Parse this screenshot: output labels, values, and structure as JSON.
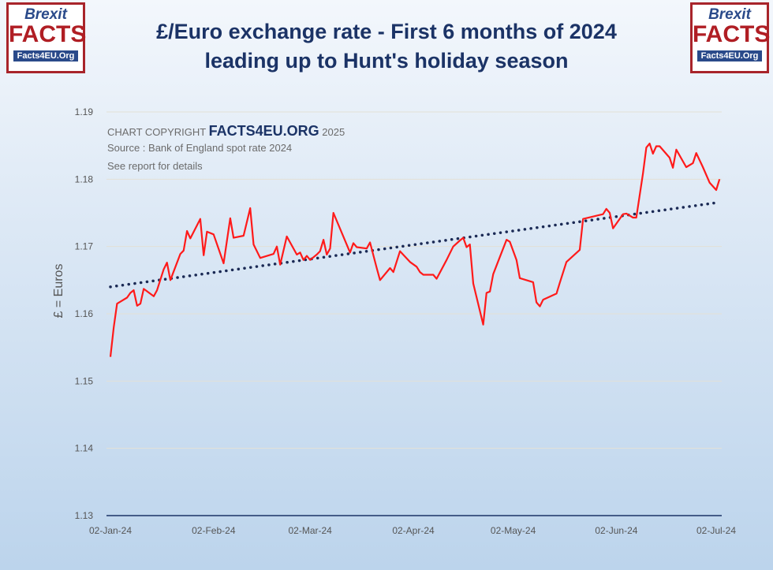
{
  "logo": {
    "line1": "Brexit",
    "line2": "FACTS",
    "line3": "Facts4EU.Org"
  },
  "title_line1": "£/Euro exchange rate - First 6 months of 2024",
  "title_line2": "leading up to Hunt's holiday season",
  "notes": {
    "copyright_prefix": "CHART COPYRIGHT",
    "copyright_brand": "FACTS4EU.ORG",
    "copyright_year": "2025",
    "source": "Source : Bank of England spot rate 2024",
    "details": "See report for details"
  },
  "chart_data": {
    "type": "line",
    "title": "£/Euro exchange rate - First 6 months of 2024 leading up to Hunt's holiday season",
    "ylabel": "£ = Euros",
    "xlabel": "",
    "ylim": [
      1.13,
      1.19
    ],
    "yticks": [
      "1.13",
      "1.14",
      "1.15",
      "1.16",
      "1.17",
      "1.18",
      "1.19"
    ],
    "xticks": [
      [
        "2024-01-02",
        "02-Jan-24"
      ],
      [
        "2024-02-02",
        "02-Feb-24"
      ],
      [
        "2024-03-02",
        "02-Mar-24"
      ],
      [
        "2024-04-02",
        "02-Apr-24"
      ],
      [
        "2024-05-02",
        "02-May-24"
      ],
      [
        "2024-06-02",
        "02-Jun-24"
      ],
      [
        "2024-07-02",
        "02-Jul-24"
      ]
    ],
    "grid": true,
    "colors": {
      "series": "#ff1a1a",
      "trend": "#1b2a55",
      "axis": "#1b3366"
    },
    "series": [
      {
        "points": [
          [
            "2024-01-02",
            1.1536
          ],
          [
            "2024-01-03",
            1.158
          ],
          [
            "2024-01-04",
            1.1615
          ],
          [
            "2024-01-07",
            1.1624
          ],
          [
            "2024-01-08",
            1.1631
          ],
          [
            "2024-01-09",
            1.1635
          ],
          [
            "2024-01-10",
            1.1612
          ],
          [
            "2024-01-11",
            1.1615
          ],
          [
            "2024-01-12",
            1.1637
          ],
          [
            "2024-01-15",
            1.1626
          ],
          [
            "2024-01-16",
            1.1635
          ],
          [
            "2024-01-18",
            1.1666
          ],
          [
            "2024-01-19",
            1.1676
          ],
          [
            "2024-01-20",
            1.165
          ],
          [
            "2024-01-23",
            1.1689
          ],
          [
            "2024-01-24",
            1.1694
          ],
          [
            "2024-01-25",
            1.1723
          ],
          [
            "2024-01-26",
            1.1712
          ],
          [
            "2024-01-29",
            1.1741
          ],
          [
            "2024-01-30",
            1.1687
          ],
          [
            "2024-01-31",
            1.1722
          ],
          [
            "2024-02-02",
            1.1718
          ],
          [
            "2024-02-05",
            1.1675
          ],
          [
            "2024-02-07",
            1.1742
          ],
          [
            "2024-02-08",
            1.1713
          ],
          [
            "2024-02-11",
            1.1716
          ],
          [
            "2024-02-13",
            1.1757
          ],
          [
            "2024-02-14",
            1.1703
          ],
          [
            "2024-02-16",
            1.1683
          ],
          [
            "2024-02-20",
            1.1689
          ],
          [
            "2024-02-21",
            1.17
          ],
          [
            "2024-02-22",
            1.1673
          ],
          [
            "2024-02-24",
            1.1715
          ],
          [
            "2024-02-27",
            1.1688
          ],
          [
            "2024-02-28",
            1.1691
          ],
          [
            "2024-02-29",
            1.168
          ],
          [
            "2024-03-01",
            1.1686
          ],
          [
            "2024-03-02",
            1.168
          ],
          [
            "2024-03-04",
            1.1688
          ],
          [
            "2024-03-05",
            1.1693
          ],
          [
            "2024-03-06",
            1.171
          ],
          [
            "2024-03-07",
            1.1688
          ],
          [
            "2024-03-08",
            1.1697
          ],
          [
            "2024-03-09",
            1.175
          ],
          [
            "2024-03-14",
            1.1691
          ],
          [
            "2024-03-15",
            1.1705
          ],
          [
            "2024-03-16",
            1.1699
          ],
          [
            "2024-03-19",
            1.1697
          ],
          [
            "2024-03-20",
            1.1706
          ],
          [
            "2024-03-22",
            1.1668
          ],
          [
            "2024-03-23",
            1.165
          ],
          [
            "2024-03-26",
            1.1668
          ],
          [
            "2024-03-27",
            1.1662
          ],
          [
            "2024-03-29",
            1.1693
          ],
          [
            "2024-04-01",
            1.1677
          ],
          [
            "2024-04-03",
            1.167
          ],
          [
            "2024-04-04",
            1.1662
          ],
          [
            "2024-04-05",
            1.1658
          ],
          [
            "2024-04-08",
            1.1658
          ],
          [
            "2024-04-09",
            1.1652
          ],
          [
            "2024-04-12",
            1.168
          ],
          [
            "2024-04-14",
            1.17
          ],
          [
            "2024-04-16",
            1.1709
          ],
          [
            "2024-04-17",
            1.1713
          ],
          [
            "2024-04-18",
            1.1699
          ],
          [
            "2024-04-19",
            1.1703
          ],
          [
            "2024-04-20",
            1.1645
          ],
          [
            "2024-04-23",
            1.1584
          ],
          [
            "2024-04-24",
            1.1631
          ],
          [
            "2024-04-25",
            1.1633
          ],
          [
            "2024-04-26",
            1.1659
          ],
          [
            "2024-04-30",
            1.171
          ],
          [
            "2024-05-01",
            1.1707
          ],
          [
            "2024-05-03",
            1.168
          ],
          [
            "2024-05-04",
            1.1653
          ],
          [
            "2024-05-08",
            1.1647
          ],
          [
            "2024-05-09",
            1.1617
          ],
          [
            "2024-05-10",
            1.1611
          ],
          [
            "2024-05-11",
            1.1621
          ],
          [
            "2024-05-15",
            1.163
          ],
          [
            "2024-05-16",
            1.1646
          ],
          [
            "2024-05-18",
            1.1677
          ],
          [
            "2024-05-22",
            1.1695
          ],
          [
            "2024-05-23",
            1.1741
          ],
          [
            "2024-05-29",
            1.1748
          ],
          [
            "2024-05-30",
            1.1756
          ],
          [
            "2024-05-31",
            1.175
          ],
          [
            "2024-06-01",
            1.1727
          ],
          [
            "2024-06-04",
            1.1748
          ],
          [
            "2024-06-05",
            1.1749
          ],
          [
            "2024-06-07",
            1.1743
          ],
          [
            "2024-06-08",
            1.1743
          ],
          [
            "2024-06-10",
            1.1809
          ],
          [
            "2024-06-11",
            1.1847
          ],
          [
            "2024-06-12",
            1.1853
          ],
          [
            "2024-06-13",
            1.1838
          ],
          [
            "2024-06-14",
            1.1849
          ],
          [
            "2024-06-15",
            1.1849
          ],
          [
            "2024-06-18",
            1.1832
          ],
          [
            "2024-06-19",
            1.1817
          ],
          [
            "2024-06-20",
            1.1844
          ],
          [
            "2024-06-23",
            1.1818
          ],
          [
            "2024-06-25",
            1.1824
          ],
          [
            "2024-06-26",
            1.1839
          ],
          [
            "2024-06-28",
            1.1818
          ],
          [
            "2024-06-30",
            1.1795
          ],
          [
            "2024-07-02",
            1.1784
          ],
          [
            "2024-07-03",
            1.18
          ]
        ]
      }
    ],
    "trendline": {
      "style": "dotted",
      "type": "linear",
      "points": [
        [
          "2024-01-02",
          1.164
        ],
        [
          "2024-07-02",
          1.1765
        ]
      ]
    }
  }
}
